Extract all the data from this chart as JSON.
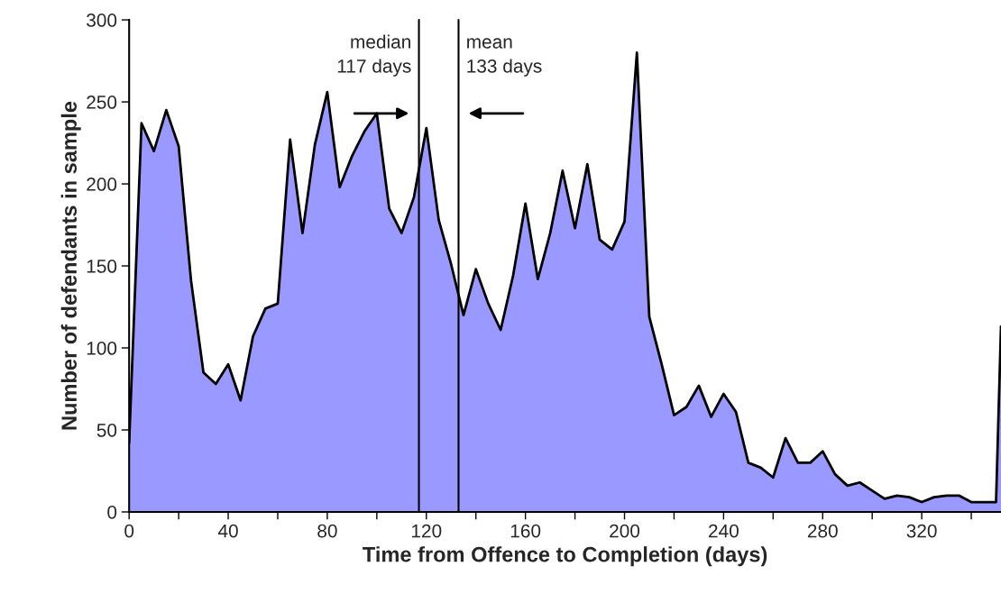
{
  "chart_data": {
    "type": "area",
    "xlabel": "Time from Offence to Completion (days)",
    "ylabel": "Number of defendants in sample",
    "x": [
      0,
      5,
      10,
      15,
      20,
      25,
      30,
      35,
      40,
      45,
      50,
      55,
      60,
      65,
      70,
      75,
      80,
      85,
      90,
      95,
      100,
      105,
      110,
      115,
      120,
      125,
      130,
      135,
      140,
      145,
      150,
      155,
      160,
      165,
      170,
      175,
      180,
      185,
      190,
      195,
      200,
      205,
      210,
      215,
      220,
      225,
      230,
      235,
      240,
      245,
      250,
      255,
      260,
      265,
      270,
      275,
      280,
      285,
      290,
      295,
      300,
      305,
      310,
      315,
      320,
      325,
      330,
      335,
      340,
      345,
      350,
      352
    ],
    "series": [
      {
        "color": "#9999ff",
        "values": [
          42,
          237,
          220,
          245,
          223,
          141,
          85,
          78,
          90,
          68,
          107,
          124,
          127,
          227,
          170,
          224,
          256,
          198,
          217,
          232,
          243,
          185,
          170,
          192,
          234,
          178,
          151,
          120,
          148,
          127,
          111,
          144,
          188,
          142,
          170,
          208,
          173,
          212,
          166,
          160,
          177,
          280,
          119,
          90,
          59,
          64,
          77,
          58,
          72,
          61,
          30,
          27,
          21,
          45,
          30,
          30,
          37,
          23,
          16,
          18,
          13,
          8,
          10,
          9,
          6,
          9,
          10,
          10,
          6,
          6,
          6,
          113
        ]
      }
    ],
    "xlim": [
      0,
      352
    ],
    "xticks": [
      0,
      {
        "value": 20,
        "label": null
      },
      40,
      {
        "value": 60,
        "label": null
      },
      80,
      {
        "value": 100,
        "label": null
      },
      120,
      {
        "value": 140,
        "label": null
      },
      160,
      {
        "value": 180,
        "label": null
      },
      200,
      {
        "value": 220,
        "label": null
      },
      240,
      {
        "value": 260,
        "label": null
      },
      280,
      {
        "value": 300,
        "label": null
      },
      320,
      {
        "value": 340,
        "label": null
      }
    ],
    "ylim": [
      0,
      300
    ],
    "yticks": [
      0,
      50,
      100,
      150,
      200,
      250,
      300
    ],
    "ref_lines": [
      {
        "axis": "x",
        "value": 117,
        "label": "median\n117 days",
        "color": "#000000"
      },
      {
        "axis": "x",
        "value": 133,
        "label": "mean\n133 days",
        "color": "#000000"
      }
    ],
    "grid": false,
    "legend": false
  }
}
